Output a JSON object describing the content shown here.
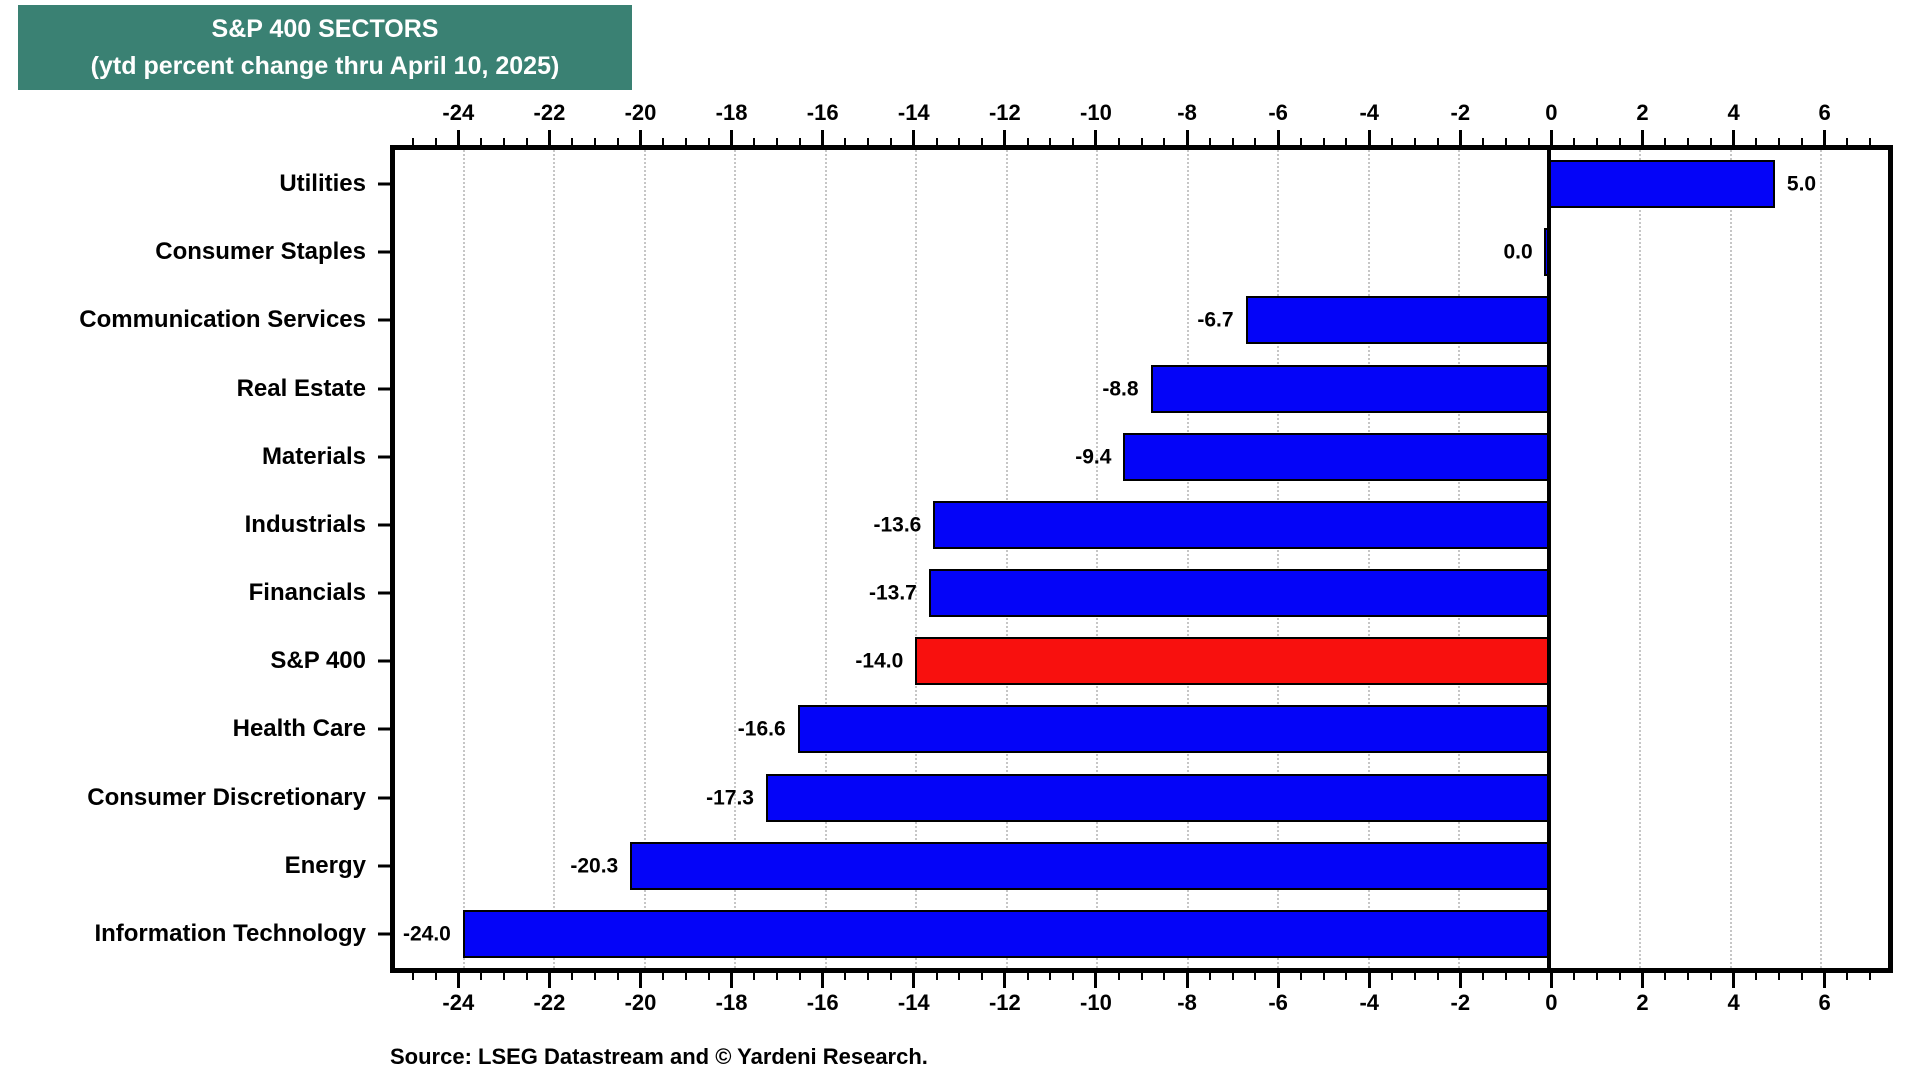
{
  "title": {
    "line1": "S&P 400 SECTORS",
    "line2": "(ytd percent change thru April 10, 2025)"
  },
  "source": "Source: LSEG Datastream and © Yardeni Research.",
  "colors": {
    "title_bg": "#3A8173",
    "title_text": "#FFFFFF",
    "bar_blue": "#0404F8",
    "bar_highlight_red": "#F8100E",
    "bar_border": "#000000",
    "gridline": "#C6C6C6",
    "axis": "#000000",
    "background": "#FFFFFF"
  },
  "chart_data": {
    "type": "bar",
    "orientation": "horizontal",
    "title": "S&P 400 SECTORS",
    "subtitle": "(ytd percent change thru April 10, 2025)",
    "xlabel": "",
    "ylabel": "",
    "categories": [
      "Utilities",
      "Consumer Staples",
      "Communication Services",
      "Real Estate",
      "Materials",
      "Industrials",
      "Financials",
      "S&P 400",
      "Health Care",
      "Consumer Discretionary",
      "Energy",
      "Information Technology"
    ],
    "values": [
      5.0,
      0.0,
      -6.7,
      -8.8,
      -9.4,
      -13.6,
      -13.7,
      -14.0,
      -16.6,
      -17.3,
      -20.3,
      -24.0
    ],
    "value_labels": [
      "5.0",
      "0.0",
      "-6.7",
      "-8.8",
      "-9.4",
      "-13.6",
      "-13.7",
      "-14.0",
      "-16.6",
      "-17.3",
      "-20.3",
      "-24.0"
    ],
    "highlight_index": 7,
    "highlight_category": "S&P 400",
    "xlim": [
      -25.5,
      7.5
    ],
    "x_ticks": [
      -24,
      -22,
      -20,
      -18,
      -16,
      -14,
      -12,
      -10,
      -8,
      -6,
      -4,
      -2,
      0,
      2,
      4,
      6
    ],
    "minor_tick_step": 0.5,
    "grid": true,
    "grid_style": "dotted-vertical-at-major-ticks",
    "zero_line": true,
    "axis_labels_position": "top-and-bottom",
    "legend": false
  }
}
